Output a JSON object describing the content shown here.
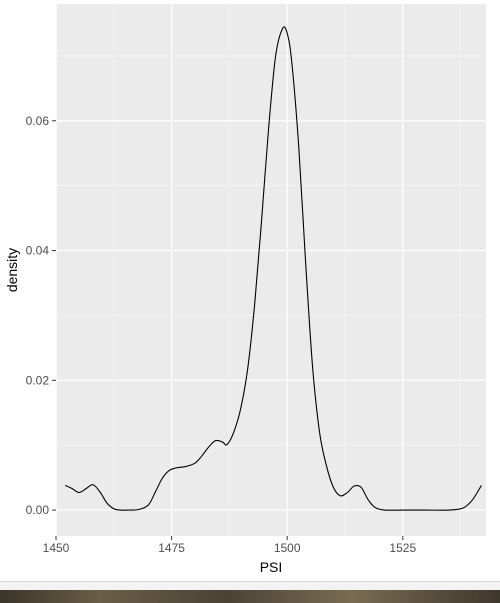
{
  "chart_data": {
    "type": "line",
    "title": "",
    "xlabel": "PSI",
    "ylabel": "density",
    "xlim": [
      1450,
      1543
    ],
    "ylim": [
      -0.004,
      0.078
    ],
    "x_ticks": [
      1450,
      1475,
      1500,
      1525
    ],
    "x_tick_labels": [
      "1450",
      "1475",
      "1500",
      "1525"
    ],
    "y_ticks": [
      0,
      0.02,
      0.04,
      0.06
    ],
    "y_tick_labels": [
      "0.00",
      "0.02",
      "0.04",
      "0.06"
    ],
    "grid": true,
    "panel_background": "#ebebeb",
    "grid_color": "#ffffff",
    "line_color": "#000000",
    "series": [
      {
        "x": [
          1452,
          1453.5,
          1455,
          1456.5,
          1458,
          1459.5,
          1461,
          1462.5,
          1464,
          1466,
          1468,
          1470,
          1471.5,
          1473,
          1474.5,
          1476,
          1478,
          1480,
          1481.5,
          1483,
          1484.5,
          1486,
          1487,
          1488.5,
          1490,
          1491.5,
          1493,
          1494.5,
          1496,
          1497.5,
          1499,
          1500,
          1501,
          1502.5,
          1504,
          1505.5,
          1507,
          1508.5,
          1510,
          1511.5,
          1513,
          1514.5,
          1516,
          1517.5,
          1519,
          1521,
          1525,
          1530,
          1535,
          1538,
          1540,
          1542
        ],
        "y": [
          0.0038,
          0.0033,
          0.0027,
          0.0033,
          0.0039,
          0.0028,
          0.0011,
          0.0002,
          0.0,
          0.0,
          0.0001,
          0.0008,
          0.0028,
          0.0049,
          0.0061,
          0.0065,
          0.0067,
          0.0072,
          0.0083,
          0.0097,
          0.0107,
          0.0105,
          0.0101,
          0.0121,
          0.0158,
          0.022,
          0.032,
          0.045,
          0.059,
          0.07,
          0.0742,
          0.0735,
          0.069,
          0.056,
          0.038,
          0.022,
          0.012,
          0.0068,
          0.0035,
          0.0022,
          0.0027,
          0.0037,
          0.0035,
          0.0016,
          0.0004,
          0.0,
          0.0,
          0.0,
          0.0,
          0.0003,
          0.0015,
          0.0038
        ]
      }
    ]
  }
}
